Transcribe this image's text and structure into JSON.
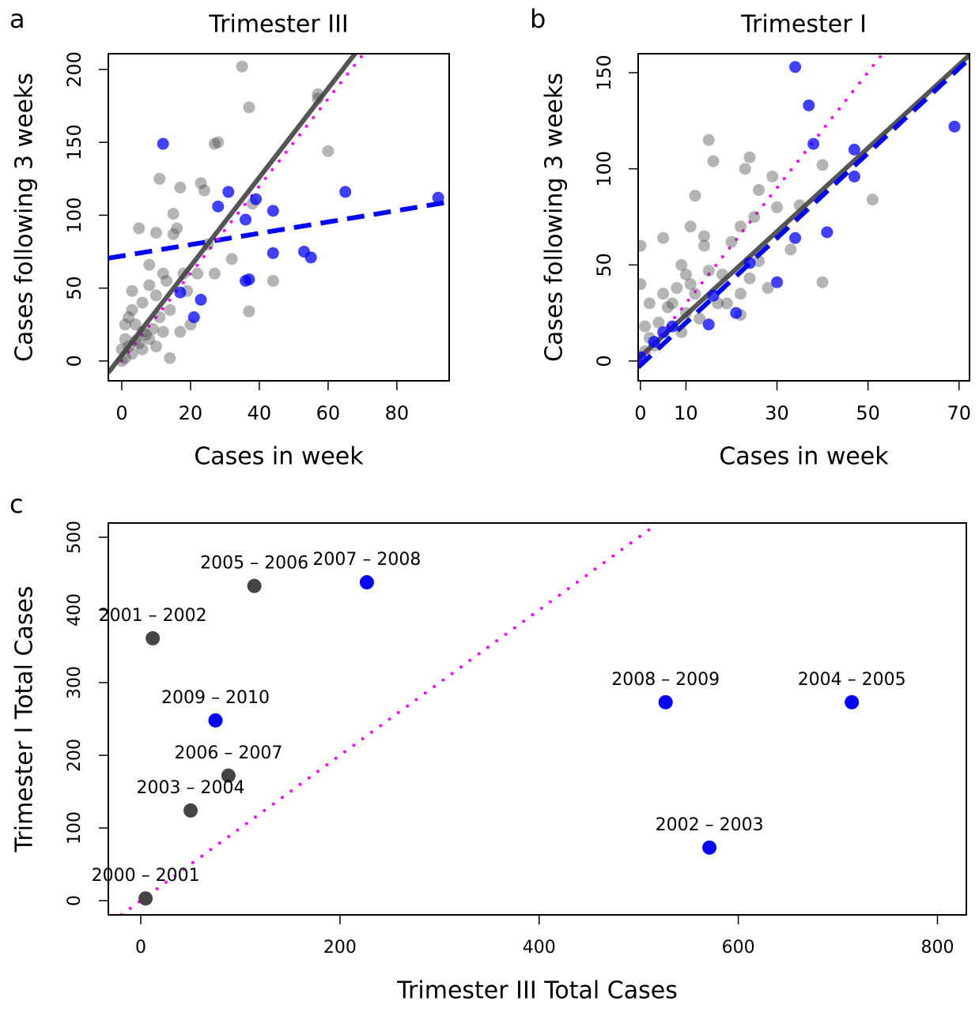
{
  "chart_data": [
    {
      "type": "scatter",
      "label": "a",
      "title": "Trimester III",
      "x_label": "Cases in week",
      "y_label": "Cases following 3 weeks",
      "xlim": [
        -3.9,
        95.2
      ],
      "ylim": [
        -13.6,
        210.8
      ],
      "xticks": [
        0,
        20,
        40,
        60,
        80
      ],
      "yticks": [
        0,
        50,
        100,
        150,
        200
      ],
      "series": [
        {
          "color": "#444444",
          "opacity": 0.4,
          "x": [
            35,
            37,
            27,
            28,
            57,
            57,
            60,
            11,
            17,
            23,
            24,
            15,
            10,
            5,
            16,
            15,
            38,
            44,
            37,
            32,
            25,
            8,
            12,
            18,
            22,
            27,
            3,
            8,
            13,
            19,
            6,
            10,
            2,
            4,
            6,
            1,
            2,
            3,
            0,
            1,
            5,
            7,
            9,
            11,
            14,
            20,
            17,
            14,
            3,
            1,
            0,
            4,
            6,
            8,
            10,
            12
          ],
          "values": [
            202,
            174,
            149,
            150,
            183,
            180,
            144,
            125,
            119,
            122,
            117,
            101,
            88,
            91,
            91,
            87,
            108,
            55,
            34,
            70,
            80,
            66,
            60,
            60,
            60,
            60,
            48,
            52,
            55,
            48,
            40,
            45,
            30,
            25,
            20,
            15,
            10,
            5,
            0,
            2,
            12,
            18,
            22,
            30,
            35,
            25,
            20,
            2,
            35,
            25,
            8,
            14,
            8,
            15,
            10,
            20
          ]
        },
        {
          "color": "#0000ff",
          "opacity": 0.75,
          "x": [
            12,
            31,
            28,
            39,
            36,
            44,
            65,
            92,
            53,
            55,
            44,
            37,
            36,
            23,
            21,
            17
          ],
          "values": [
            149,
            116,
            106,
            111,
            97,
            103,
            116,
            112,
            75,
            71,
            74,
            56,
            55,
            42,
            30,
            47
          ]
        }
      ],
      "lines": [
        {
          "color": "#555555",
          "dash": "solid",
          "x": [
            -3.9,
            70
          ],
          "values": [
            -8,
            217.5
          ]
        },
        {
          "color": "#0000ff",
          "dash": "dashed",
          "x": [
            -3.9,
            95.2
          ],
          "values": [
            70.5,
            109.1
          ]
        },
        {
          "color": "#ff00ff",
          "dash": "dotted",
          "x": [
            0,
            70.3
          ],
          "values": [
            0,
            210.8
          ]
        }
      ]
    },
    {
      "type": "scatter",
      "label": "b",
      "title": "Trimester I",
      "x_label": "Cases in week",
      "y_label": "Cases following 3 weeks",
      "xlim": [
        -0.5,
        72.3
      ],
      "ylim": [
        -10.3,
        159.9
      ],
      "xticks": [
        0,
        10,
        30,
        50,
        70
      ],
      "yticks": [
        0,
        50,
        100,
        150
      ],
      "series": [
        {
          "color": "#444444",
          "opacity": 0.4,
          "x": [
            15,
            16,
            24,
            23,
            29,
            40,
            51,
            40,
            12,
            26,
            5,
            0,
            0,
            2,
            9,
            10,
            14,
            14,
            11,
            22,
            25,
            35,
            30,
            20,
            18,
            22,
            26,
            33,
            8,
            6,
            4,
            2,
            1,
            3,
            10,
            12,
            17,
            19,
            13,
            9,
            7,
            5,
            11,
            15,
            24,
            28,
            22,
            1
          ],
          "values": [
            115,
            104,
            106,
            100,
            96,
            102,
            84,
            41,
            86,
            89,
            64,
            60,
            40,
            30,
            50,
            45,
            60,
            65,
            70,
            70,
            75,
            81,
            80,
            62,
            45,
            35,
            52,
            58,
            38,
            28,
            20,
            12,
            5,
            8,
            25,
            35,
            30,
            30,
            22,
            15,
            30,
            35,
            40,
            47,
            43,
            38,
            24,
            18
          ]
        },
        {
          "color": "#0000ff",
          "opacity": 0.75,
          "x": [
            34,
            37,
            38,
            69,
            47,
            47,
            41,
            34,
            30,
            21,
            15,
            16,
            24,
            5,
            7,
            3,
            0
          ],
          "values": [
            153,
            133,
            113,
            122,
            110,
            96,
            67,
            64,
            41,
            25,
            19,
            34,
            51,
            15,
            18,
            10,
            2
          ]
        }
      ],
      "lines": [
        {
          "color": "#555555",
          "dash": "solid",
          "x": [
            -0.5,
            72.3
          ],
          "values": [
            1.2,
            159.2
          ]
        },
        {
          "color": "#0000ff",
          "dash": "dashed",
          "x": [
            -0.5,
            72.3
          ],
          "values": [
            -3.3,
            157.4
          ]
        },
        {
          "color": "#ff00ff",
          "dash": "dotted",
          "x": [
            0,
            53.2
          ],
          "values": [
            0,
            159.9
          ]
        }
      ]
    },
    {
      "type": "scatter",
      "label": "c",
      "x_label": "Trimester III Total Cases",
      "y_label": "Trimester I Total Cases",
      "xlim": [
        -32.6,
        829
      ],
      "ylim": [
        -19.6,
        519.6
      ],
      "xticks": [
        0,
        200,
        400,
        600,
        800
      ],
      "yticks": [
        0,
        100,
        200,
        300,
        400,
        500
      ],
      "series": [
        {
          "color": "#444444",
          "opacity": 1,
          "x": [
            4.8,
            12,
            50,
            114,
            88
          ],
          "values": [
            3,
            361,
            124,
            433,
            172
          ],
          "labels": [
            "2000 – 2001",
            "2001 – 2002",
            "2003 – 2004",
            "2005 – 2006",
            "2006 – 2007"
          ]
        },
        {
          "color": "#0000ff",
          "opacity": 1,
          "x": [
            571,
            714,
            227,
            527,
            75
          ],
          "values": [
            73,
            273,
            438,
            273,
            248
          ],
          "labels": [
            "2002 – 2003",
            "2004 – 2005",
            "2007 – 2008",
            "2008 – 2009",
            "2009 – 2010"
          ]
        }
      ],
      "lines": [
        {
          "color": "#ff00ff",
          "dash": "dotted",
          "x": [
            -19.6,
            513
          ],
          "values": [
            -19.6,
            513
          ]
        }
      ]
    }
  ]
}
